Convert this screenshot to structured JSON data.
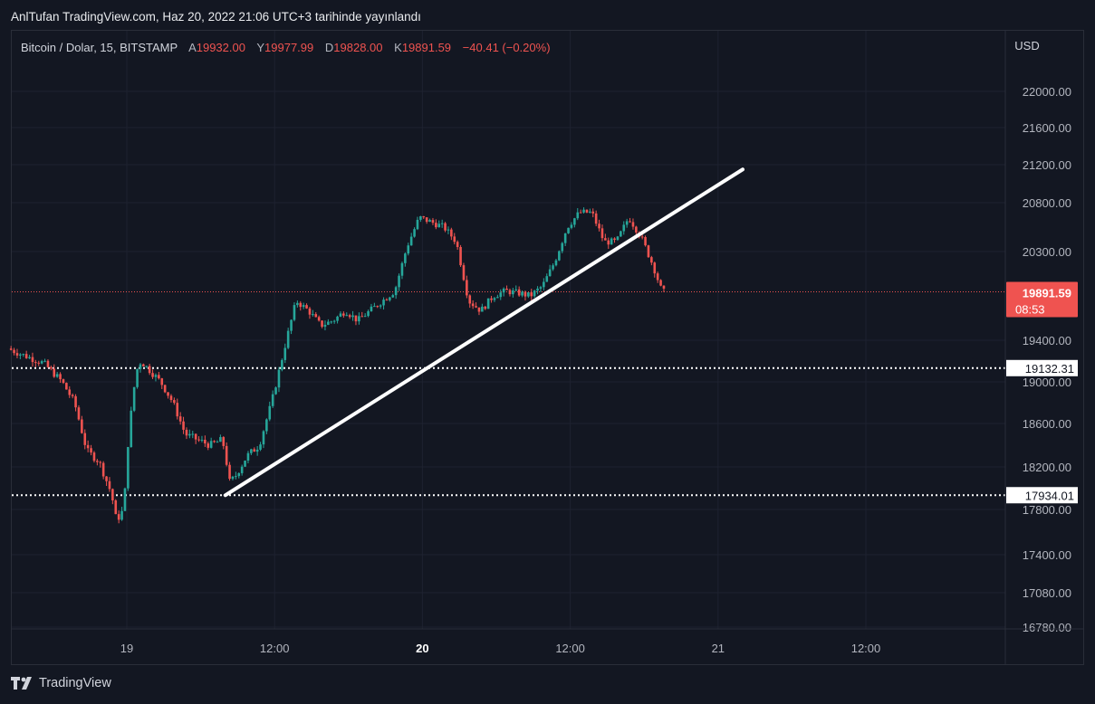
{
  "header": {
    "publisher": "AnlTufan TradingView.com, Haz 20, 2022 21:06 UTC+3 tarihinde yayınlandı"
  },
  "legend": {
    "symbol": "Bitcoin / Dolar, 15, BITSTAMP",
    "open_label": "A",
    "open": "19932.00",
    "high_label": "Y",
    "high": "19977.99",
    "low_label": "D",
    "low": "19828.00",
    "close_label": "K",
    "close": "19891.59",
    "change": "−40.41 (−0.20%)"
  },
  "footer": {
    "brand": "TradingView"
  },
  "chart_data": {
    "type": "candlestick",
    "currency": "USD",
    "y_ticks": [
      {
        "value": 22000,
        "label": "22000.00"
      },
      {
        "value": 21600,
        "label": "21600.00"
      },
      {
        "value": 21200,
        "label": "21200.00"
      },
      {
        "value": 20800,
        "label": "20800.00"
      },
      {
        "value": 20300,
        "label": "20300.00"
      },
      {
        "value": 19400,
        "label": "19400.00"
      },
      {
        "value": 19000,
        "label": "19000.00"
      },
      {
        "value": 18600,
        "label": "18600.00"
      },
      {
        "value": 18200,
        "label": "18200.00"
      },
      {
        "value": 17800,
        "label": "17800.00"
      },
      {
        "value": 17400,
        "label": "17400.00"
      },
      {
        "value": 17080,
        "label": "17080.00"
      },
      {
        "value": 16780,
        "label": "16780.00"
      }
    ],
    "x_ticks": [
      {
        "t": 0,
        "label": "19",
        "bold": false
      },
      {
        "t": 12,
        "label": "12:00",
        "bold": false
      },
      {
        "t": 24,
        "label": "20",
        "bold": true
      },
      {
        "t": 36,
        "label": "12:00",
        "bold": false
      },
      {
        "t": 48,
        "label": "21",
        "bold": false
      },
      {
        "t": 60,
        "label": "12:00",
        "bold": false
      }
    ],
    "price_path": [
      [
        -9.4,
        19320
      ],
      [
        -8,
        19250
      ],
      [
        -6.5,
        19180
      ],
      [
        -5,
        19000
      ],
      [
        -4,
        18800
      ],
      [
        -3,
        18350
      ],
      [
        -2,
        18250
      ],
      [
        -1,
        17950
      ],
      [
        -0.6,
        17700
      ],
      [
        0,
        17800
      ],
      [
        0.4,
        18500
      ],
      [
        1,
        19100
      ],
      [
        1.4,
        19200
      ],
      [
        2.2,
        19100
      ],
      [
        3,
        19000
      ],
      [
        4,
        18800
      ],
      [
        5,
        18500
      ],
      [
        6,
        18450
      ],
      [
        7,
        18400
      ],
      [
        8,
        18450
      ],
      [
        8.3,
        18300
      ],
      [
        8.5,
        18050
      ],
      [
        9,
        18100
      ],
      [
        10,
        18300
      ],
      [
        11,
        18400
      ],
      [
        12,
        18800
      ],
      [
        13,
        19300
      ],
      [
        14,
        19800
      ],
      [
        15,
        19700
      ],
      [
        16,
        19550
      ],
      [
        17,
        19600
      ],
      [
        18,
        19700
      ],
      [
        19,
        19600
      ],
      [
        20,
        19700
      ],
      [
        21,
        19800
      ],
      [
        22,
        19900
      ],
      [
        23,
        20350
      ],
      [
        24,
        20650
      ],
      [
        25,
        20600
      ],
      [
        26,
        20550
      ],
      [
        27,
        20400
      ],
      [
        28,
        19800
      ],
      [
        29,
        19700
      ],
      [
        30,
        19850
      ],
      [
        31,
        19900
      ],
      [
        32,
        19880
      ],
      [
        33,
        19850
      ],
      [
        34,
        19950
      ],
      [
        35,
        20200
      ],
      [
        36,
        20550
      ],
      [
        37,
        20700
      ],
      [
        38,
        20700
      ],
      [
        39,
        20400
      ],
      [
        40,
        20400
      ],
      [
        41,
        20650
      ],
      [
        42,
        20450
      ],
      [
        43,
        20150
      ],
      [
        43.7,
        19891
      ]
    ],
    "last_price": {
      "value": 19891.59,
      "label": "19891.59",
      "countdown": "08:53"
    },
    "lines": {
      "support_upper": {
        "value": 19132.31,
        "label": "19132.31"
      },
      "support_lower": {
        "value": 17934.01,
        "label": "17934.01"
      },
      "trendline": {
        "t1": 8.0,
        "v1": 17934,
        "t2": 50.0,
        "v2": 21150
      }
    }
  }
}
